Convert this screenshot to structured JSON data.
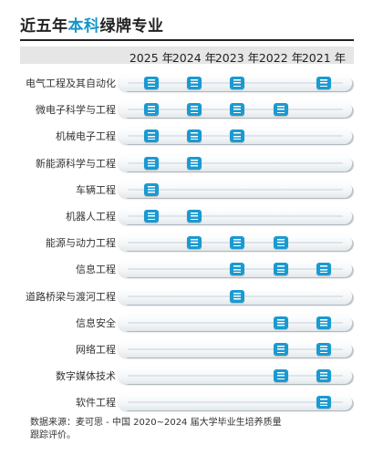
{
  "header": {
    "title_plain": "近五年",
    "title_highlight": "本科",
    "title_suffix": "绿牌专业"
  },
  "chart_data": {
    "type": "table",
    "years": [
      "2025 年",
      "2024 年",
      "2023 年",
      "2022 年",
      "2021 年"
    ],
    "rows": [
      {
        "label": "电气工程及其自动化",
        "marks": [
          1,
          1,
          1,
          0,
          1
        ]
      },
      {
        "label": "微电子科学与工程",
        "marks": [
          1,
          1,
          1,
          1,
          0
        ]
      },
      {
        "label": "机械电子工程",
        "marks": [
          1,
          1,
          1,
          0,
          0
        ]
      },
      {
        "label": "新能源科学与工程",
        "marks": [
          1,
          1,
          0,
          0,
          0
        ]
      },
      {
        "label": "车辆工程",
        "marks": [
          1,
          0,
          0,
          0,
          0
        ]
      },
      {
        "label": "机器人工程",
        "marks": [
          1,
          1,
          0,
          0,
          0
        ]
      },
      {
        "label": "能源与动力工程",
        "marks": [
          0,
          1,
          1,
          1,
          0
        ]
      },
      {
        "label": "信息工程",
        "marks": [
          0,
          0,
          1,
          1,
          1
        ]
      },
      {
        "label": "道路桥梁与渡河工程",
        "marks": [
          0,
          0,
          1,
          0,
          0
        ]
      },
      {
        "label": "信息安全",
        "marks": [
          0,
          0,
          0,
          1,
          1
        ]
      },
      {
        "label": "网络工程",
        "marks": [
          0,
          0,
          0,
          1,
          1
        ]
      },
      {
        "label": "数字媒体技术",
        "marks": [
          0,
          0,
          0,
          1,
          1
        ]
      },
      {
        "label": "软件工程",
        "marks": [
          0,
          0,
          0,
          0,
          1
        ]
      }
    ],
    "marker_icon": "list-icon",
    "marker_color": "#1a9ad1"
  },
  "footer": {
    "source_line1": "数据来源：麦可思 - 中国 2020~2024 届大学毕业生培养质量",
    "source_line2": "跟踪评价。"
  }
}
